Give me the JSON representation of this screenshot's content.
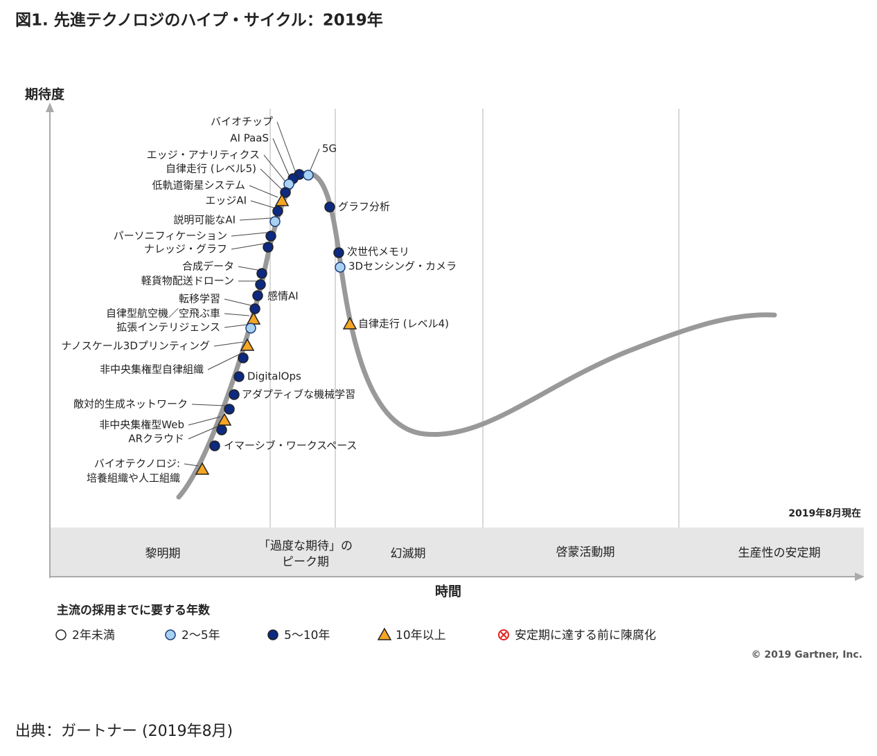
{
  "header": {
    "title": "図1. 先進テクノロジのハイプ・サイクル：2019年"
  },
  "axes": {
    "y_label": "期待度",
    "x_label": "時間",
    "as_of": "2019年8月現在"
  },
  "phases": [
    {
      "label": [
        "黎明期"
      ]
    },
    {
      "label": [
        "「過度な期待」の",
        "ピーク期"
      ]
    },
    {
      "label": [
        "幻滅期"
      ]
    },
    {
      "label": [
        "啓蒙活動期"
      ]
    },
    {
      "label": [
        "生産性の安定期"
      ]
    }
  ],
  "technologies": [
    {
      "label": [
        "バイオチップ"
      ],
      "marker": "dark"
    },
    {
      "label": [
        "AI PaaS"
      ],
      "marker": "dark"
    },
    {
      "label": [
        "エッジ・アナリティクス"
      ],
      "marker": "light"
    },
    {
      "label": [
        "自律走行 (レベル5)"
      ],
      "marker": "dark"
    },
    {
      "label": [
        "低軌道衛星システム"
      ],
      "marker": "triangle"
    },
    {
      "label": [
        "エッジAI"
      ],
      "marker": "dark"
    },
    {
      "label": [
        "説明可能なAI"
      ],
      "marker": "light"
    },
    {
      "label": [
        "5G"
      ],
      "marker": "light"
    },
    {
      "label": [
        "パーソニフィケーション"
      ],
      "marker": "dark"
    },
    {
      "label": [
        "ナレッジ・グラフ"
      ],
      "marker": "dark"
    },
    {
      "label": [
        "合成データ"
      ],
      "marker": "dark"
    },
    {
      "label": [
        "軽貨物配送ドローン"
      ],
      "marker": "dark"
    },
    {
      "label": [
        "感情AI"
      ],
      "marker": "dark"
    },
    {
      "label": [
        "転移学習"
      ],
      "marker": "dark"
    },
    {
      "label": [
        "自律型航空機／空飛ぶ車"
      ],
      "marker": "triangle"
    },
    {
      "label": [
        "拡張インテリジェンス"
      ],
      "marker": "light"
    },
    {
      "label": [
        "ナノスケール3Dプリンティング"
      ],
      "marker": "triangle"
    },
    {
      "label": [
        "非中央集権型自律組織"
      ],
      "marker": "dark"
    },
    {
      "label": [
        "DigitalOps"
      ],
      "marker": "dark"
    },
    {
      "label": [
        "アダプティブな機械学習"
      ],
      "marker": "dark"
    },
    {
      "label": [
        "敵対的生成ネットワーク"
      ],
      "marker": "dark"
    },
    {
      "label": [
        "非中央集権型Web"
      ],
      "marker": "triangle"
    },
    {
      "label": [
        "ARクラウド"
      ],
      "marker": "dark"
    },
    {
      "label": [
        "イマーシブ・ワークスペース"
      ],
      "marker": "dark"
    },
    {
      "label": [
        "バイオテクノロジ:",
        "培養組織や人工組織"
      ],
      "marker": "triangle"
    },
    {
      "label": [
        "グラフ分析"
      ],
      "marker": "dark"
    },
    {
      "label": [
        "次世代メモリ"
      ],
      "marker": "dark"
    },
    {
      "label": [
        "3Dセンシング・カメラ"
      ],
      "marker": "light"
    },
    {
      "label": [
        "自律走行 (レベル4)"
      ],
      "marker": "triangle"
    }
  ],
  "legend": {
    "title": "主流の採用までに要する年数",
    "items": [
      {
        "label": "2年未満",
        "marker": "open"
      },
      {
        "label": "2～5年",
        "marker": "light"
      },
      {
        "label": "5～10年",
        "marker": "dark"
      },
      {
        "label": "10年以上",
        "marker": "triangle"
      },
      {
        "label": "安定期に達する前に陳腐化",
        "marker": "obsolete"
      }
    ]
  },
  "copyright": "© 2019 Gartner, Inc.",
  "source": "出典：ガートナー (2019年8月)"
}
